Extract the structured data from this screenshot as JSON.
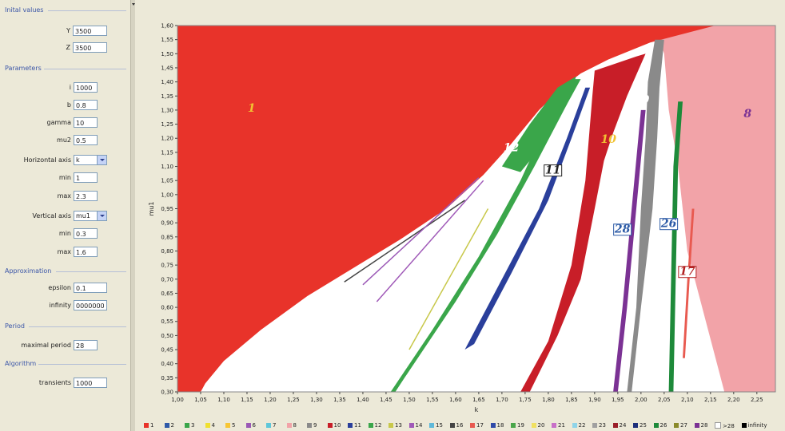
{
  "left_panel": {
    "sections": {
      "initial": "Inital values",
      "parameters": "Parameters",
      "approximation": "Approximation",
      "period": "Period",
      "algorithm": "Algorithm"
    },
    "fields": {
      "Y": {
        "label": "Y",
        "value": "3500"
      },
      "Z": {
        "label": "Z",
        "value": "3500"
      },
      "i": {
        "label": "i",
        "value": "1000"
      },
      "b": {
        "label": "b",
        "value": "0.8"
      },
      "gamma": {
        "label": "gamma",
        "value": "10"
      },
      "mu2": {
        "label": "mu2",
        "value": "0.5"
      },
      "hmin": {
        "label": "min",
        "value": "1"
      },
      "hmax": {
        "label": "max",
        "value": "2.3"
      },
      "vmin": {
        "label": "min",
        "value": "0.3"
      },
      "vmax": {
        "label": "max",
        "value": "1.6"
      },
      "epsilon": {
        "label": "epsilon",
        "value": "0.1"
      },
      "infinity": {
        "label": "infinity",
        "value": "0000000"
      },
      "period": {
        "label": "maximal period",
        "value": "28"
      },
      "transients": {
        "label": "transients",
        "value": "1000"
      }
    },
    "horizontal_axis": {
      "label": "Horizontal axis",
      "value": "k"
    },
    "vertical_axis": {
      "label": "Vertical axis",
      "value": "mu1"
    }
  },
  "chart_data": {
    "type": "heatmap",
    "xlabel": "k",
    "ylabel": "mu1",
    "xlim": [
      1.0,
      2.29
    ],
    "ylim": [
      0.3,
      1.6
    ],
    "x_ticks": [
      "1,00",
      "1,05",
      "1,10",
      "1,15",
      "1,20",
      "1,25",
      "1,30",
      "1,35",
      "1,40",
      "1,45",
      "1,50",
      "1,55",
      "1,60",
      "1,65",
      "1,70",
      "1,75",
      "1,80",
      "1,85",
      "1,90",
      "1,95",
      "2,00",
      "2,05",
      "2,10",
      "2,15",
      "2,20",
      "2,25"
    ],
    "y_ticks": [
      "0,30",
      "0,35",
      "0,40",
      "0,45",
      "0,50",
      "0,55",
      "0,60",
      "0,65",
      "0,70",
      "0,75",
      "0,80",
      "0,85",
      "0,90",
      "0,95",
      "1,00",
      "1,05",
      "1,10",
      "1,15",
      "1,20",
      "1,25",
      "1,30",
      "1,35",
      "1,40",
      "1,45",
      "1,50",
      "1,55",
      "1,60"
    ],
    "region_labels": [
      {
        "text": "1",
        "k": 1.16,
        "mu": 1.3,
        "color": "#f1c232",
        "boxed": false
      },
      {
        "text": "12",
        "k": 1.72,
        "mu": 1.16,
        "color": "#ffffff",
        "boxed": false
      },
      {
        "text": "11",
        "k": 1.81,
        "mu": 1.08,
        "color": "#222222",
        "boxed": true
      },
      {
        "text": "10",
        "k": 1.93,
        "mu": 1.19,
        "color": "#f1c232",
        "boxed": false
      },
      {
        "text": "9",
        "k": 2.01,
        "mu": 1.33,
        "color": "#ffffff",
        "boxed": false
      },
      {
        "text": "8",
        "k": 2.23,
        "mu": 1.28,
        "color": "#7b3294",
        "boxed": false
      },
      {
        "text": "28",
        "k": 1.96,
        "mu": 0.87,
        "color": "#2b5aa6",
        "boxed": true
      },
      {
        "text": "26",
        "k": 2.06,
        "mu": 0.89,
        "color": "#2b5aa6",
        "boxed": true
      },
      {
        "text": "17",
        "k": 2.1,
        "mu": 0.72,
        "color": "#b22222",
        "boxed": true
      }
    ],
    "legend": [
      {
        "label": "1",
        "color": "#e8332a"
      },
      {
        "label": "2",
        "color": "#2f5aa8"
      },
      {
        "label": "3",
        "color": "#3aa64a"
      },
      {
        "label": "4",
        "color": "#f0e030"
      },
      {
        "label": "5",
        "color": "#f7c634"
      },
      {
        "label": "6",
        "color": "#9b59b6"
      },
      {
        "label": "7",
        "color": "#5fc7d9"
      },
      {
        "label": "8",
        "color": "#f2a3a8"
      },
      {
        "label": "9",
        "color": "#8a8a8a"
      },
      {
        "label": "10",
        "color": "#c81e28"
      },
      {
        "label": "11",
        "color": "#2a3f9b"
      },
      {
        "label": "12",
        "color": "#3aa64a"
      },
      {
        "label": "13",
        "color": "#c8c84a"
      },
      {
        "label": "14",
        "color": "#a05ab8"
      },
      {
        "label": "15",
        "color": "#5fb9d9"
      },
      {
        "label": "16",
        "color": "#444444"
      },
      {
        "label": "17",
        "color": "#e85a50"
      },
      {
        "label": "18",
        "color": "#2f4aa8"
      },
      {
        "label": "19",
        "color": "#4aa64a"
      },
      {
        "label": "20",
        "color": "#f0e060"
      },
      {
        "label": "21",
        "color": "#c870c8"
      },
      {
        "label": "22",
        "color": "#8fd4e8"
      },
      {
        "label": "23",
        "color": "#a0a0a0"
      },
      {
        "label": "24",
        "color": "#9a1e28"
      },
      {
        "label": "25",
        "color": "#1e2f7b"
      },
      {
        "label": "26",
        "color": "#1e8a3a"
      },
      {
        "label": "27",
        "color": "#8a8a2a"
      },
      {
        "label": "28",
        "color": "#7b3294"
      },
      {
        "label": ">28",
        "color": "#ffffff"
      },
      {
        "label": "infinity",
        "color": "#000000"
      }
    ]
  }
}
